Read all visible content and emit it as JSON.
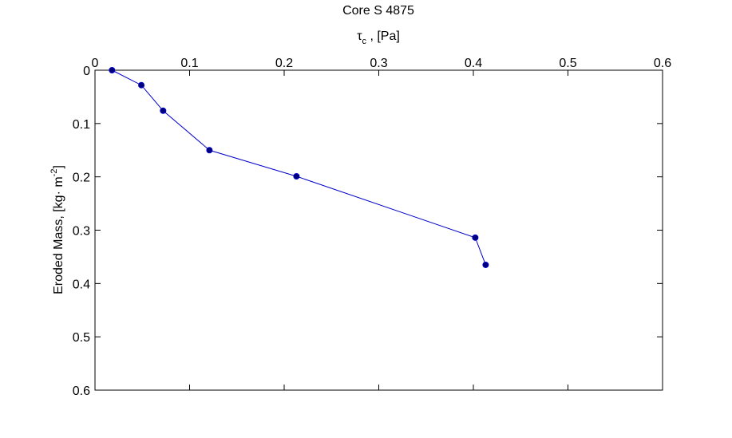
{
  "chart_data": {
    "type": "line",
    "title": "Core S 4875",
    "x_label": {
      "symbol": "τ",
      "subscript": "c",
      "rest": " , [Pa]"
    },
    "y_label": {
      "text": "Eroded Mass, [kg· m",
      "superscript": "-2",
      "end": "]"
    },
    "series": [
      {
        "color": "#0000cc",
        "marker_color": "#00007a",
        "x": [
          0.018,
          0.049,
          0.072,
          0.121,
          0.213,
          0.402,
          0.413
        ],
        "values": [
          0,
          0.028,
          0.076,
          0.15,
          0.199,
          0.314,
          0.365
        ]
      }
    ],
    "xlim": [
      0,
      0.6
    ],
    "xticks": [
      0,
      0.1,
      0.2,
      0.3,
      0.4,
      0.5,
      0.6
    ],
    "ylim": [
      0,
      0.6
    ],
    "yticks": [
      0,
      0.1,
      0.2,
      0.3,
      0.4,
      0.5,
      0.6
    ],
    "y_reversed": true,
    "x_axis_position": "top",
    "grid": false
  }
}
